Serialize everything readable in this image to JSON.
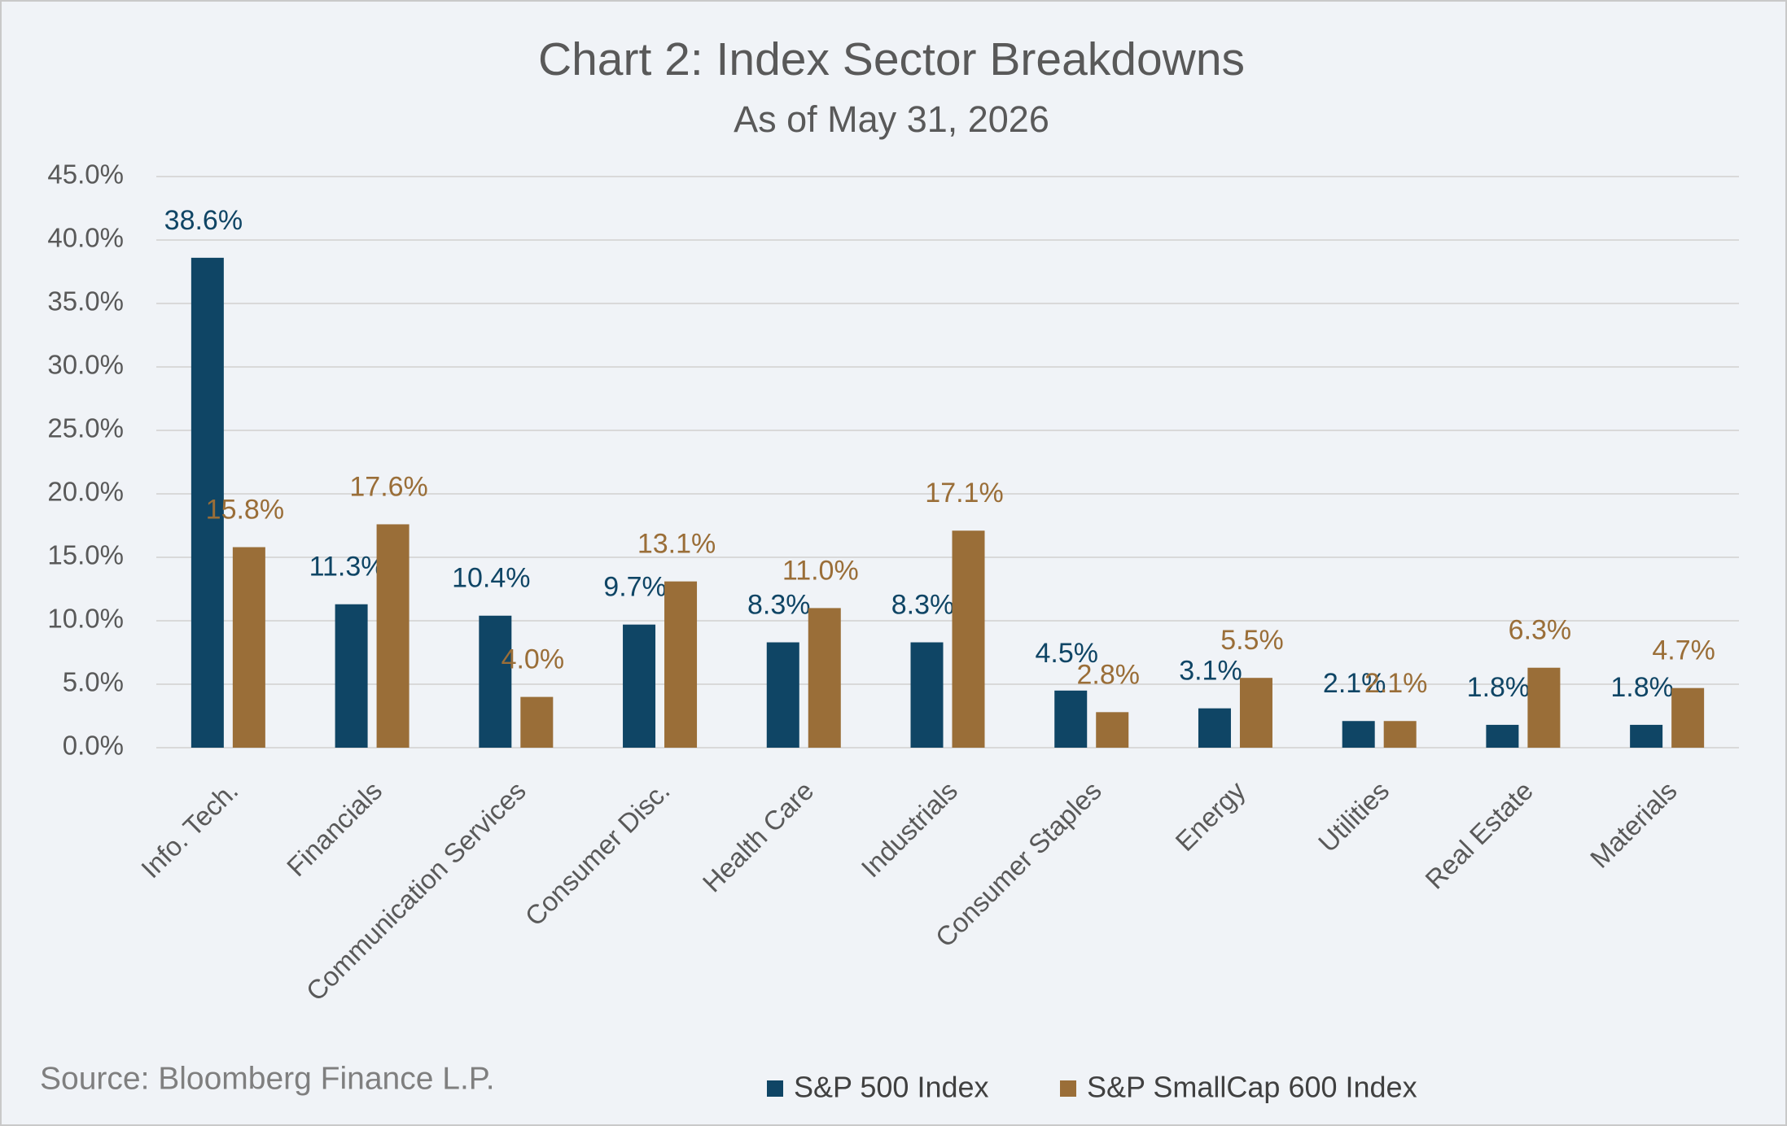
{
  "chart_data": {
    "type": "bar",
    "title": "Chart 2: Index Sector Breakdowns",
    "subtitle": "As of May 31, 2026",
    "source": "Source: Bloomberg Finance L.P.",
    "categories": [
      "Info. Tech.",
      "Financials",
      "Communication Services",
      "Consumer Disc.",
      "Health Care",
      "Industrials",
      "Consumer Staples",
      "Energy",
      "Utilities",
      "Real Estate",
      "Materials"
    ],
    "series": [
      {
        "name": "S&P 500 Index",
        "color": "#0f4565",
        "values": [
          38.6,
          11.3,
          10.4,
          9.7,
          8.3,
          8.3,
          4.5,
          3.1,
          2.1,
          1.8,
          1.8
        ],
        "value_labels": [
          "38.6%",
          "11.3%",
          "10.4%",
          "9.7%",
          "8.3%",
          "8.3%",
          "4.5%",
          "3.1%",
          "2.1%",
          "1.8%",
          "1.8%"
        ]
      },
      {
        "name": "S&P SmallCap 600 Index",
        "color": "#9a6e38",
        "values": [
          15.8,
          17.6,
          4.0,
          13.1,
          11.0,
          17.1,
          2.8,
          5.5,
          2.1,
          6.3,
          4.7
        ],
        "value_labels": [
          "15.8%",
          "17.6%",
          "4.0%",
          "13.1%",
          "11.0%",
          "17.1%",
          "2.8%",
          "5.5%",
          "2.1%",
          "6.3%",
          "4.7%"
        ]
      }
    ],
    "ylim": [
      0,
      45
    ],
    "yticks": [
      {
        "value": 0,
        "label": "0.0%"
      },
      {
        "value": 5,
        "label": "5.0%"
      },
      {
        "value": 10,
        "label": "10.0%"
      },
      {
        "value": 15,
        "label": "15.0%"
      },
      {
        "value": 20,
        "label": "20.0%"
      },
      {
        "value": 25,
        "label": "25.0%"
      },
      {
        "value": 30,
        "label": "30.0%"
      },
      {
        "value": 35,
        "label": "35.0%"
      },
      {
        "value": 40,
        "label": "40.0%"
      },
      {
        "value": 45,
        "label": "45.0%"
      }
    ],
    "grid": true
  }
}
